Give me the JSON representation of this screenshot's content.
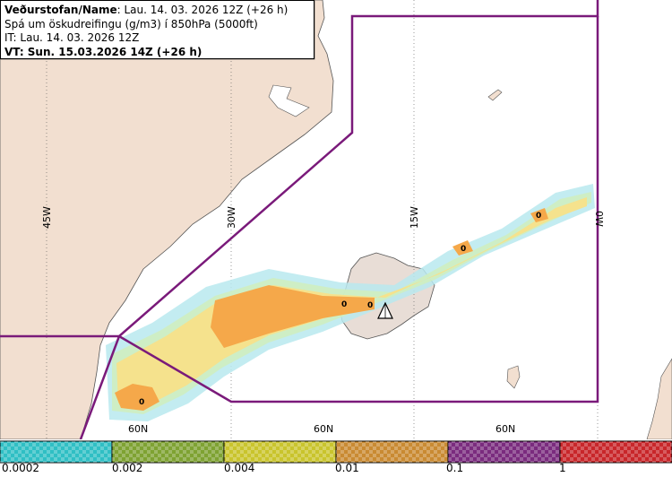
{
  "header": {
    "line1_bold": "Veðurstofan/Name",
    "line1_rest": ": Lau. 14. 03. 2026 12Z (+26 h)",
    "line2": "Spá um öskudreifingu (g/m3) í 850hPa (5000ft)",
    "line3": "IT: Lau. 14. 03. 2026 12Z",
    "line4": "VT: Sun. 15.03.2026 14Z (+26 h)"
  },
  "map": {
    "longitude_labels": [
      "45W",
      "30W",
      "15W",
      "0W"
    ],
    "latitude_labels": [
      "60N",
      "60N",
      "60N"
    ],
    "zero_markers": [
      "0",
      "0",
      "0",
      "0",
      "0"
    ],
    "colors": {
      "land": "#f2dfd0",
      "coast": "#555555",
      "zone": "#7a1a7a",
      "ash_dense": "#f5a84a",
      "ash_light": "#f7e08a",
      "ash_trace": "#b9e9ee",
      "ash_faint": "#cfeec0"
    }
  },
  "scale": {
    "labels": [
      "0.0002",
      "0.002",
      "0.004",
      "0.01",
      "0.1",
      "1"
    ],
    "colors": [
      "#2fbfc4",
      "#7ea232",
      "#c9c42c",
      "#c98a32",
      "#7a2b7e",
      "#c8262a"
    ]
  }
}
